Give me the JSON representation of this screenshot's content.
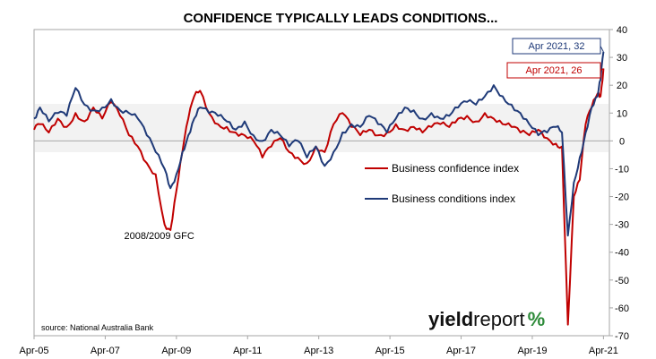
{
  "chart_data": {
    "type": "line",
    "title": "CONFIDENCE TYPICALLY LEADS CONDITIONS...",
    "x_tick_labels": [
      "Apr-05",
      "Apr-07",
      "Apr-09",
      "Apr-11",
      "Apr-13",
      "Apr-15",
      "Apr-17",
      "Apr-19",
      "Apr-21"
    ],
    "x_range": [
      "2005-04",
      "2021-06"
    ],
    "ylim": [
      -70,
      40
    ],
    "y_ticks": [
      40,
      30,
      20,
      10,
      0,
      -10,
      -20,
      -30,
      -40,
      -50,
      -60,
      -70
    ],
    "y_axis_side": "right",
    "legend_position": "center",
    "series": [
      {
        "name": "Business confidence index",
        "color": "#c00000",
        "points": [
          [
            "2005-04",
            4
          ],
          [
            "2005-06",
            6
          ],
          [
            "2005-09",
            3
          ],
          [
            "2005-12",
            8
          ],
          [
            "2006-03",
            5
          ],
          [
            "2006-06",
            10
          ],
          [
            "2006-09",
            7
          ],
          [
            "2006-12",
            12
          ],
          [
            "2007-03",
            8
          ],
          [
            "2007-06",
            14
          ],
          [
            "2007-09",
            9
          ],
          [
            "2007-12",
            2
          ],
          [
            "2008-03",
            -2
          ],
          [
            "2008-06",
            -8
          ],
          [
            "2008-09",
            -12
          ],
          [
            "2008-12",
            -30
          ],
          [
            "2009-02",
            -32
          ],
          [
            "2009-04",
            -18
          ],
          [
            "2009-06",
            -4
          ],
          [
            "2009-08",
            8
          ],
          [
            "2009-10",
            16
          ],
          [
            "2009-12",
            18
          ],
          [
            "2010-03",
            10
          ],
          [
            "2010-06",
            6
          ],
          [
            "2010-09",
            5
          ],
          [
            "2010-12",
            3
          ],
          [
            "2011-03",
            2
          ],
          [
            "2011-06",
            0
          ],
          [
            "2011-09",
            -6
          ],
          [
            "2011-12",
            -2
          ],
          [
            "2012-03",
            1
          ],
          [
            "2012-06",
            -4
          ],
          [
            "2012-09",
            -6
          ],
          [
            "2012-12",
            -8
          ],
          [
            "2013-03",
            -2
          ],
          [
            "2013-06",
            -4
          ],
          [
            "2013-09",
            6
          ],
          [
            "2013-12",
            10
          ],
          [
            "2014-03",
            5
          ],
          [
            "2014-06",
            2
          ],
          [
            "2014-09",
            4
          ],
          [
            "2014-12",
            2
          ],
          [
            "2015-03",
            3
          ],
          [
            "2015-06",
            6
          ],
          [
            "2015-09",
            4
          ],
          [
            "2015-12",
            5
          ],
          [
            "2016-03",
            3
          ],
          [
            "2016-06",
            5
          ],
          [
            "2016-09",
            6
          ],
          [
            "2016-12",
            5
          ],
          [
            "2017-03",
            8
          ],
          [
            "2017-06",
            9
          ],
          [
            "2017-09",
            7
          ],
          [
            "2017-12",
            10
          ],
          [
            "2018-03",
            8
          ],
          [
            "2018-06",
            6
          ],
          [
            "2018-09",
            5
          ],
          [
            "2018-12",
            3
          ],
          [
            "2019-03",
            2
          ],
          [
            "2019-06",
            4
          ],
          [
            "2019-09",
            1
          ],
          [
            "2019-12",
            -1
          ],
          [
            "2020-02",
            -2
          ],
          [
            "2020-04",
            -66
          ],
          [
            "2020-06",
            -20
          ],
          [
            "2020-08",
            -14
          ],
          [
            "2020-10",
            6
          ],
          [
            "2020-12",
            12
          ],
          [
            "2021-02",
            17
          ],
          [
            "2021-03",
            16
          ],
          [
            "2021-04",
            26
          ]
        ]
      },
      {
        "name": "Business conditions index",
        "color": "#1f3a78",
        "points": [
          [
            "2005-04",
            8
          ],
          [
            "2005-06",
            12
          ],
          [
            "2005-09",
            7
          ],
          [
            "2005-12",
            10
          ],
          [
            "2006-03",
            9
          ],
          [
            "2006-06",
            19
          ],
          [
            "2006-09",
            13
          ],
          [
            "2006-12",
            11
          ],
          [
            "2007-03",
            12
          ],
          [
            "2007-06",
            15
          ],
          [
            "2007-09",
            11
          ],
          [
            "2007-12",
            10
          ],
          [
            "2008-03",
            8
          ],
          [
            "2008-06",
            2
          ],
          [
            "2008-09",
            -4
          ],
          [
            "2008-12",
            -10
          ],
          [
            "2009-02",
            -17
          ],
          [
            "2009-04",
            -12
          ],
          [
            "2009-06",
            -4
          ],
          [
            "2009-08",
            2
          ],
          [
            "2009-10",
            8
          ],
          [
            "2009-12",
            12
          ],
          [
            "2010-03",
            10
          ],
          [
            "2010-06",
            9
          ],
          [
            "2010-09",
            7
          ],
          [
            "2010-12",
            4
          ],
          [
            "2011-03",
            7
          ],
          [
            "2011-06",
            2
          ],
          [
            "2011-09",
            0
          ],
          [
            "2011-12",
            4
          ],
          [
            "2012-03",
            2
          ],
          [
            "2012-06",
            -2
          ],
          [
            "2012-09",
            0
          ],
          [
            "2012-12",
            -6
          ],
          [
            "2013-03",
            -2
          ],
          [
            "2013-06",
            -9
          ],
          [
            "2013-09",
            -4
          ],
          [
            "2013-12",
            3
          ],
          [
            "2014-03",
            6
          ],
          [
            "2014-06",
            5
          ],
          [
            "2014-09",
            9
          ],
          [
            "2014-12",
            6
          ],
          [
            "2015-03",
            3
          ],
          [
            "2015-06",
            8
          ],
          [
            "2015-09",
            12
          ],
          [
            "2015-12",
            11
          ],
          [
            "2016-03",
            8
          ],
          [
            "2016-06",
            10
          ],
          [
            "2016-09",
            8
          ],
          [
            "2016-12",
            9
          ],
          [
            "2017-03",
            12
          ],
          [
            "2017-06",
            14
          ],
          [
            "2017-09",
            13
          ],
          [
            "2017-12",
            16
          ],
          [
            "2018-03",
            20
          ],
          [
            "2018-06",
            16
          ],
          [
            "2018-09",
            13
          ],
          [
            "2018-12",
            10
          ],
          [
            "2019-03",
            6
          ],
          [
            "2019-06",
            2
          ],
          [
            "2019-09",
            3
          ],
          [
            "2019-12",
            5
          ],
          [
            "2020-02",
            3
          ],
          [
            "2020-04",
            -34
          ],
          [
            "2020-06",
            -15
          ],
          [
            "2020-08",
            -6
          ],
          [
            "2020-10",
            3
          ],
          [
            "2020-12",
            12
          ],
          [
            "2021-02",
            16
          ],
          [
            "2021-03",
            22
          ],
          [
            "2021-04",
            32
          ]
        ]
      }
    ],
    "annotations": [
      {
        "text": "2008/2009 GFC",
        "x": "2008-09",
        "y": -34
      }
    ],
    "callouts": [
      {
        "text": "Apr 2021, 32",
        "series": "Business conditions index",
        "point": [
          "2021-04",
          32
        ],
        "color": "#1f3a78"
      },
      {
        "text": "Apr 2021, 26",
        "series": "Business confidence index",
        "point": [
          "2021-04",
          26
        ],
        "color": "#c00000"
      }
    ],
    "source": "source: National Australia Bank"
  },
  "brand": {
    "part1": "yield",
    "part2": "report",
    "symbol": "%",
    "symbol_colors": [
      "#2e8b3a",
      "#c00000"
    ]
  }
}
